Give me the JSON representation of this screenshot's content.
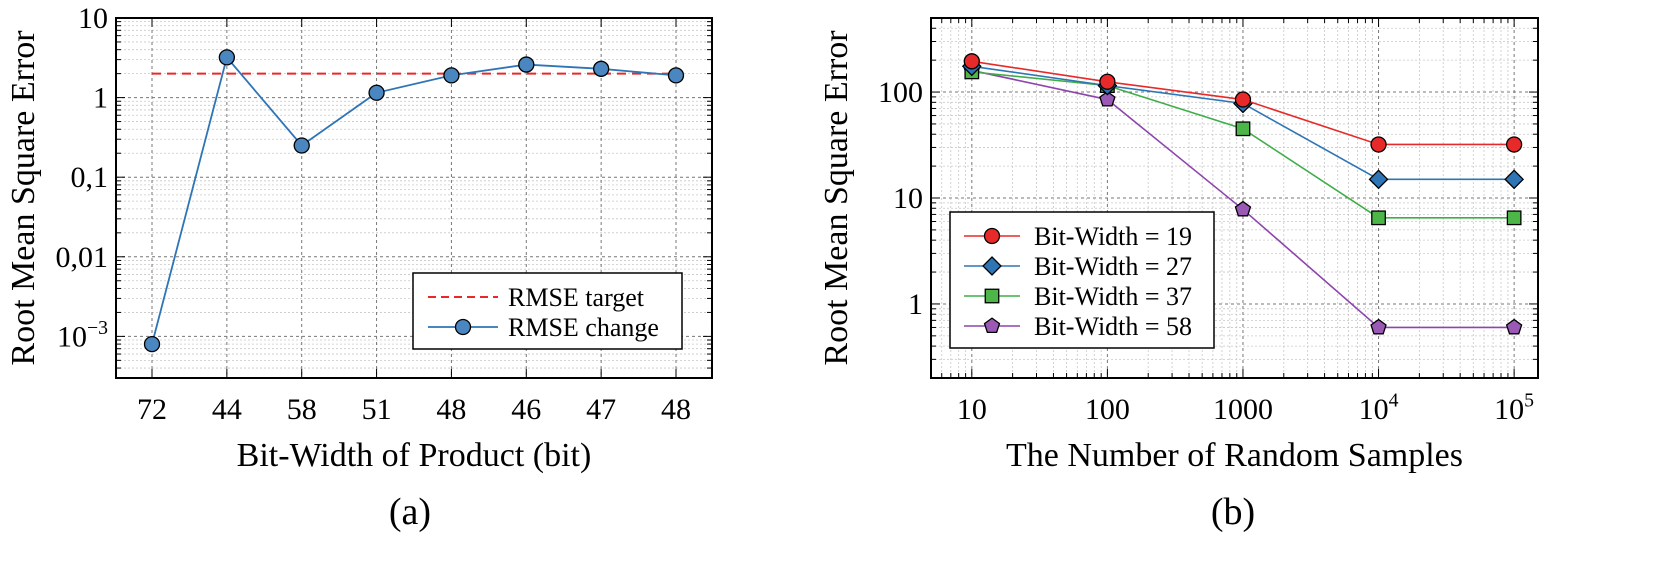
{
  "chart_data": [
    {
      "type": "line",
      "panel_label": "(a)",
      "xlabel": "Bit-Width of Product (bit)",
      "ylabel": "Root Mean Square Error",
      "y_scale": "log",
      "ylim": [
        0.0003,
        10
      ],
      "grid": true,
      "legend_position": "bottom-right",
      "categories": [
        "72",
        "44",
        "58",
        "51",
        "48",
        "46",
        "47",
        "48"
      ],
      "y_ticks": [
        {
          "value": 0.001,
          "label": "10",
          "sup": "−3"
        },
        {
          "value": 0.01,
          "label": "0,01",
          "sup": ""
        },
        {
          "value": 0.1,
          "label": "0,1",
          "sup": ""
        },
        {
          "value": 1,
          "label": "1",
          "sup": ""
        },
        {
          "value": 10,
          "label": "10",
          "sup": ""
        }
      ],
      "series": [
        {
          "name": "RMSE target",
          "style": "dashed",
          "color": "#e8292a",
          "values": [
            2,
            2,
            2,
            2,
            2,
            2,
            2,
            2
          ]
        },
        {
          "name": "RMSE change",
          "style": "line-marker",
          "marker": "circle",
          "color": "#2e75b6",
          "fill": "#4a86c0",
          "values": [
            0.0008,
            3.2,
            0.25,
            1.15,
            1.9,
            2.6,
            2.3,
            1.9
          ]
        }
      ]
    },
    {
      "type": "line",
      "panel_label": "(b)",
      "xlabel": "The Number of Random Samples",
      "ylabel": "Root Mean Square Error",
      "x_scale": "log",
      "y_scale": "log",
      "xlim": [
        5,
        150000
      ],
      "ylim": [
        0.2,
        500
      ],
      "grid": true,
      "legend_position": "bottom-left",
      "x_ticks": [
        {
          "value": 10,
          "label": "10",
          "sup": ""
        },
        {
          "value": 100,
          "label": "100",
          "sup": ""
        },
        {
          "value": 1000,
          "label": "1000",
          "sup": ""
        },
        {
          "value": 10000,
          "label": "10",
          "sup": "4"
        },
        {
          "value": 100000,
          "label": "10",
          "sup": "5"
        }
      ],
      "y_ticks": [
        {
          "value": 1,
          "label": "1"
        },
        {
          "value": 10,
          "label": "10"
        },
        {
          "value": 100,
          "label": "100"
        }
      ],
      "x": [
        10,
        100,
        1000,
        10000,
        100000
      ],
      "series": [
        {
          "name": "Bit-Width = 19",
          "marker": "circle",
          "color": "#e8292a",
          "fill": "#e8292a",
          "values": [
            195,
            125,
            85,
            32,
            32
          ]
        },
        {
          "name": "Bit-Width = 27",
          "marker": "diamond",
          "color": "#2e75b6",
          "fill": "#2e75b6",
          "values": [
            175,
            115,
            78,
            15,
            15
          ]
        },
        {
          "name": "Bit-Width = 37",
          "marker": "square",
          "color": "#3fae49",
          "fill": "#4cb648",
          "values": [
            155,
            115,
            45,
            6.5,
            6.5
          ]
        },
        {
          "name": "Bit-Width = 58",
          "marker": "pentagon",
          "color": "#8e44ad",
          "fill": "#9b59b6",
          "values": [
            160,
            85,
            7.8,
            0.6,
            0.6
          ]
        }
      ]
    }
  ]
}
